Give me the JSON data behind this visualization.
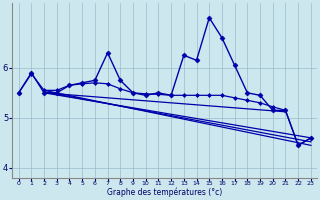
{
  "xlabel": "Graphe des températures (°c)",
  "background_color": "#cce8ee",
  "line_color": "#0000aa",
  "grid_color": "#99bbcc",
  "xlim": [
    -0.5,
    23.5
  ],
  "ylim": [
    3.8,
    7.3
  ],
  "yticks": [
    4,
    5,
    6
  ],
  "xticks": [
    0,
    1,
    2,
    3,
    4,
    5,
    6,
    7,
    8,
    9,
    10,
    11,
    12,
    13,
    14,
    15,
    16,
    17,
    18,
    19,
    20,
    21,
    22,
    23
  ],
  "series": [
    {
      "x": [
        0,
        1,
        2,
        3,
        4,
        5,
        6,
        7,
        8,
        9,
        10,
        11,
        12,
        13,
        14,
        15,
        16,
        17,
        18,
        19,
        20,
        21,
        22,
        23
      ],
      "y": [
        5.5,
        5.9,
        5.5,
        5.5,
        5.65,
        5.7,
        5.75,
        6.3,
        5.75,
        5.5,
        5.45,
        5.5,
        5.45,
        6.25,
        6.15,
        7.0,
        6.6,
        6.05,
        5.5,
        5.45,
        5.15,
        5.15,
        4.45,
        4.6
      ],
      "marker": "D",
      "markersize": 2.5,
      "linewidth": 1.0
    },
    {
      "x": [
        0,
        1,
        2,
        3,
        4,
        5,
        6,
        7,
        8,
        9,
        10,
        11,
        12,
        13,
        14,
        15,
        16,
        17,
        18,
        19,
        20,
        21,
        22,
        23
      ],
      "y": [
        5.5,
        5.88,
        5.55,
        5.55,
        5.65,
        5.68,
        5.7,
        5.68,
        5.58,
        5.5,
        5.48,
        5.47,
        5.45,
        5.45,
        5.45,
        5.45,
        5.45,
        5.4,
        5.35,
        5.3,
        5.22,
        5.15,
        4.45,
        4.6
      ],
      "marker": "D",
      "markersize": 2.0,
      "linewidth": 0.9
    },
    {
      "x": [
        2,
        23
      ],
      "y": [
        5.55,
        4.45
      ],
      "marker": null,
      "markersize": 0,
      "linewidth": 0.9
    },
    {
      "x": [
        2,
        23
      ],
      "y": [
        5.52,
        4.52
      ],
      "marker": null,
      "markersize": 0,
      "linewidth": 0.9
    },
    {
      "x": [
        2,
        23
      ],
      "y": [
        5.5,
        4.6
      ],
      "marker": null,
      "markersize": 0,
      "linewidth": 0.9
    },
    {
      "x": [
        2,
        21
      ],
      "y": [
        5.5,
        5.12
      ],
      "marker": null,
      "markersize": 0,
      "linewidth": 0.9
    }
  ]
}
